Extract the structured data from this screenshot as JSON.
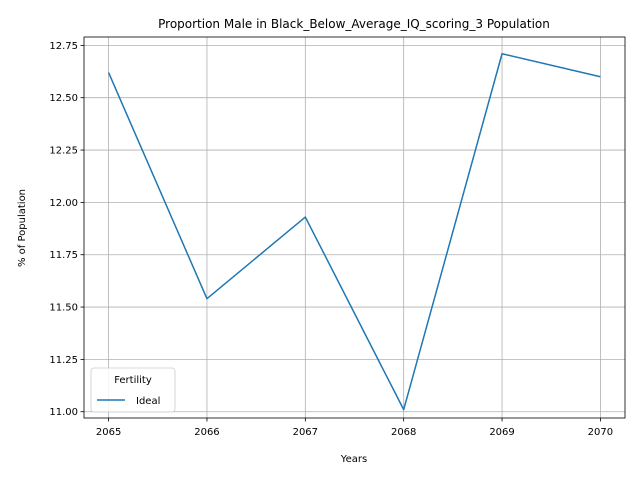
{
  "chart_data": {
    "type": "line",
    "title": "Proportion Male in Black_Below_Average_IQ_scoring_3 Population",
    "xlabel": "Years",
    "ylabel": "% of Population",
    "x": [
      2065,
      2066,
      2067,
      2068,
      2069,
      2070
    ],
    "x_tick_labels": [
      "2065",
      "2066",
      "2067",
      "2068",
      "2069",
      "2070"
    ],
    "y_ticks": [
      11.0,
      11.25,
      11.5,
      11.75,
      12.0,
      12.25,
      12.5,
      12.75
    ],
    "y_tick_labels": [
      "11.00",
      "11.25",
      "11.50",
      "11.75",
      "12.00",
      "12.25",
      "12.50",
      "12.75"
    ],
    "xlim": [
      2064.75,
      2070.25
    ],
    "ylim": [
      10.97,
      12.79
    ],
    "grid": true,
    "legend": {
      "title": "Fertility",
      "placement": "lower-left"
    },
    "series": [
      {
        "name": "Ideal",
        "color": "#1f77b4",
        "values": [
          12.62,
          11.54,
          11.93,
          11.01,
          12.71,
          12.6
        ]
      }
    ]
  }
}
